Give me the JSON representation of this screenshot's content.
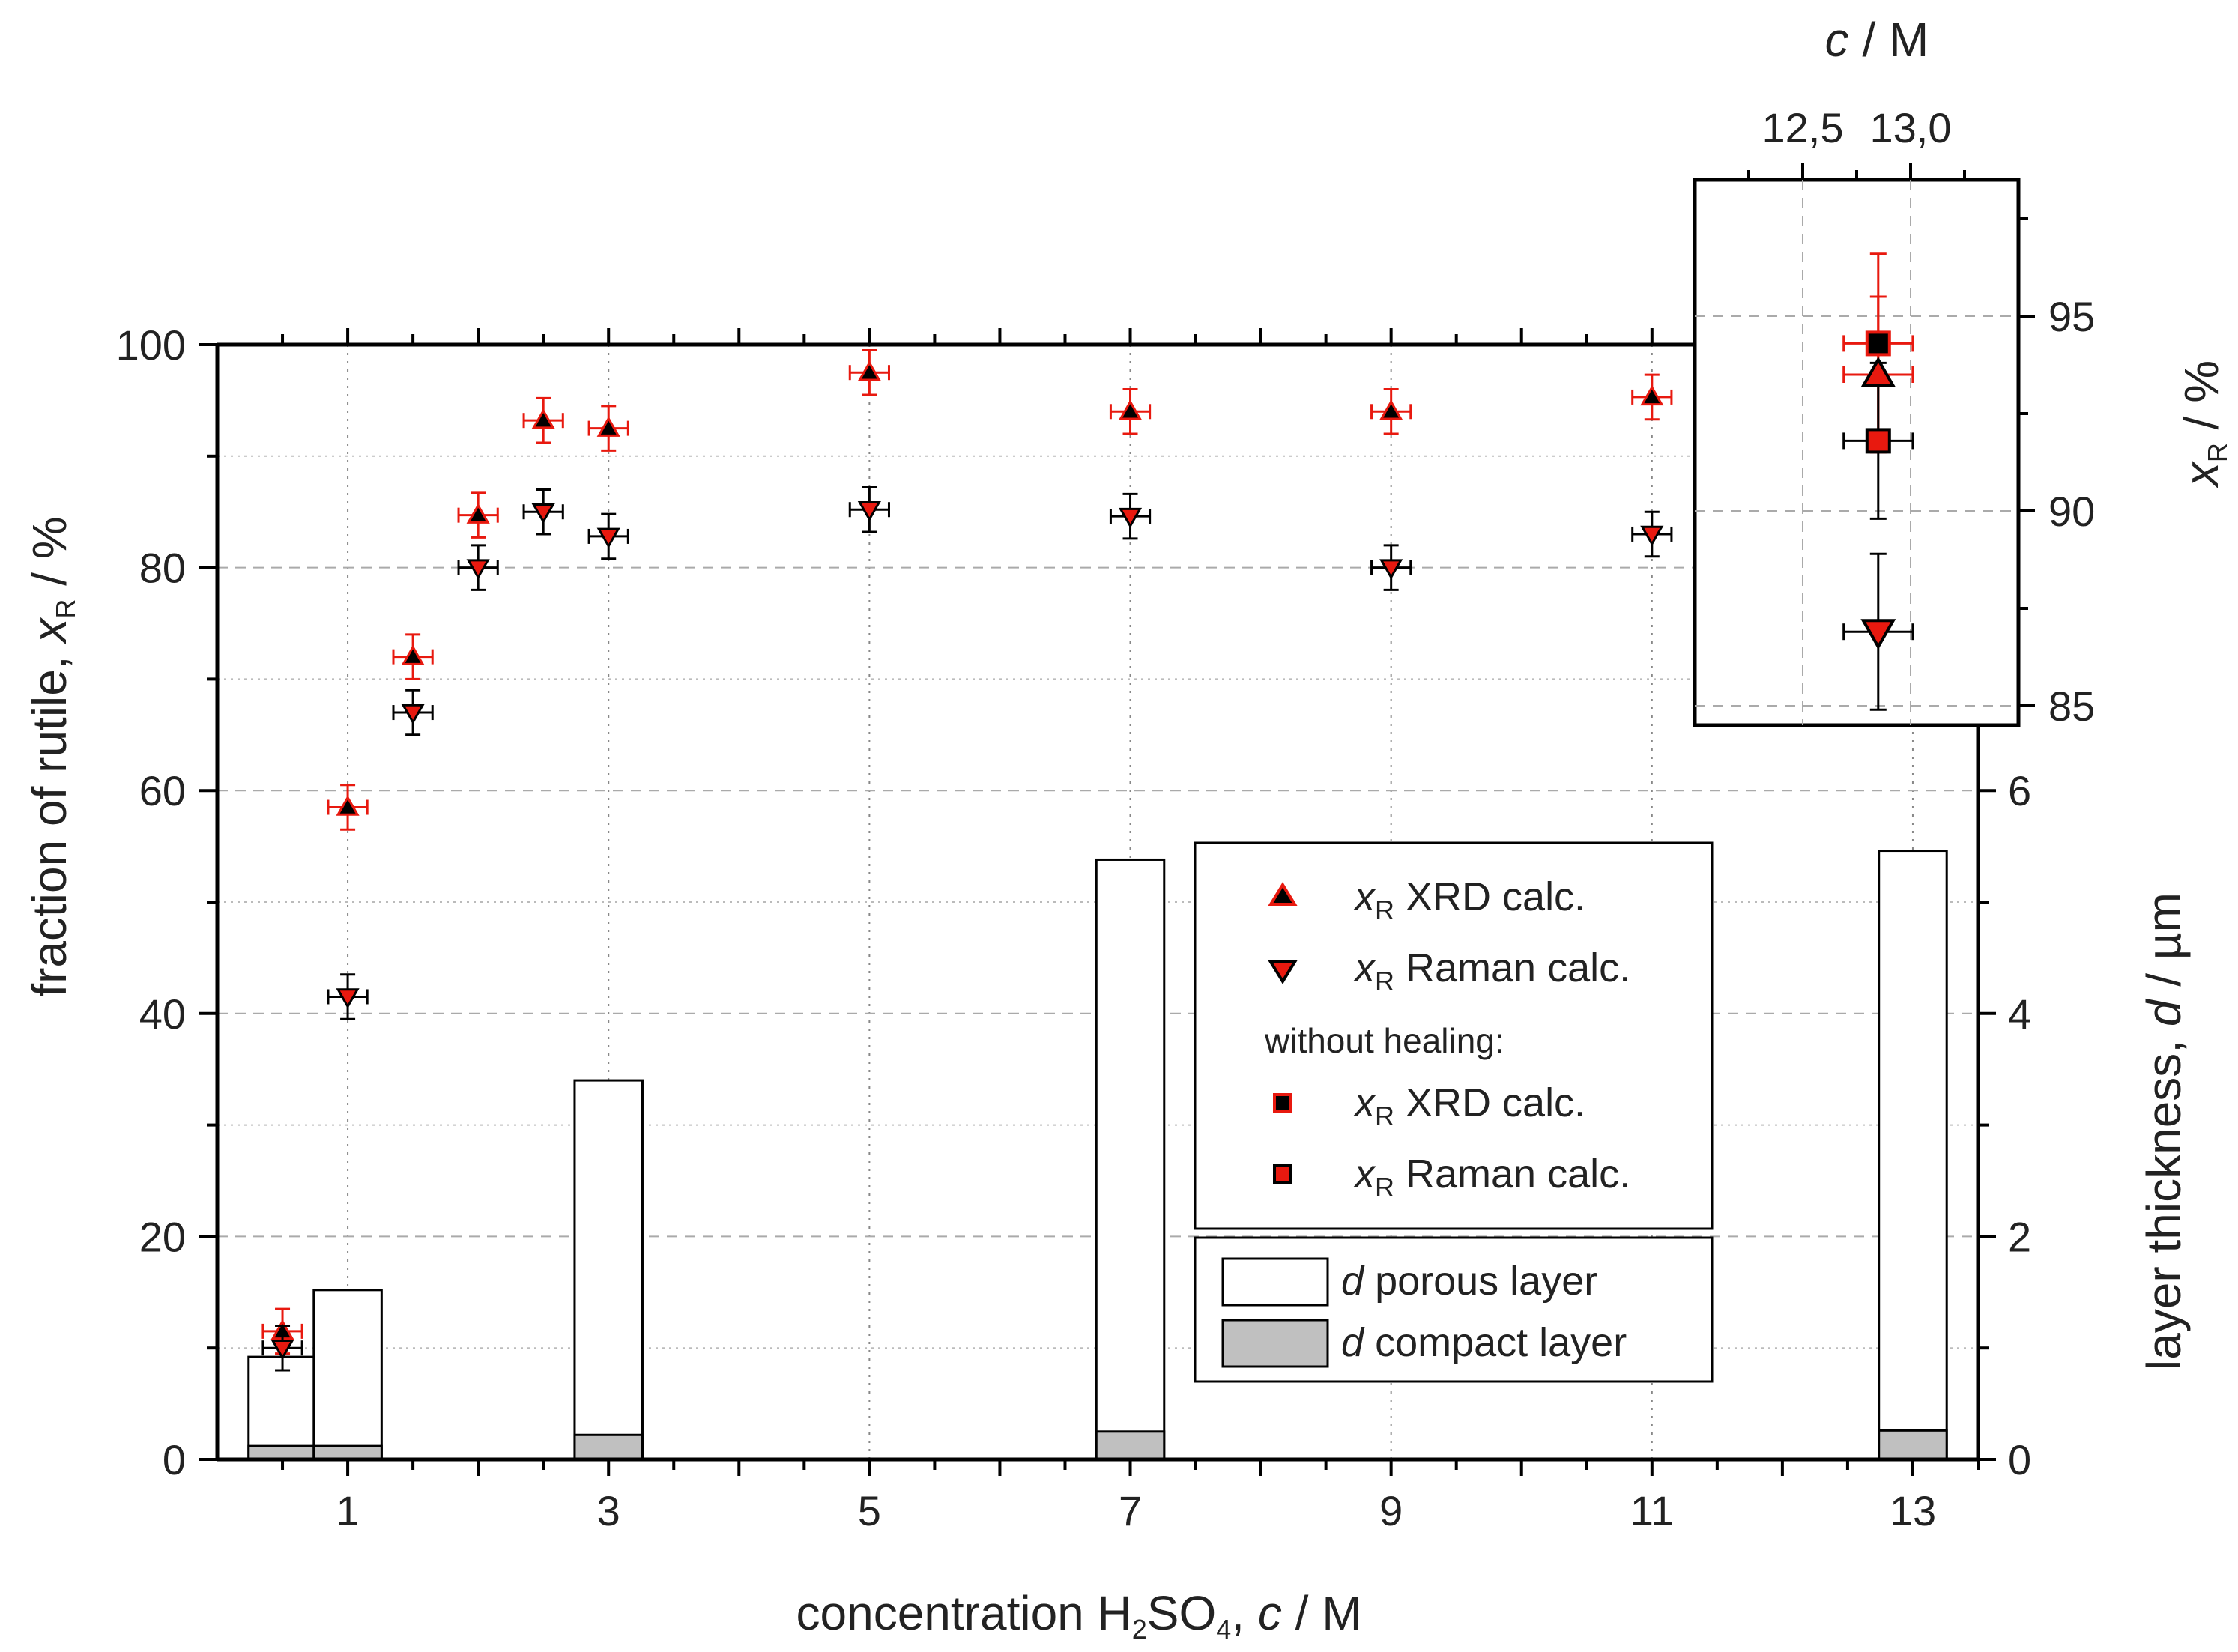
{
  "chart_data": {
    "type": "scatter",
    "title": "",
    "xlabel": {
      "prefix": "concentration H",
      "sub": "2",
      "mid": "SO",
      "sub2": "4",
      "sep": ", ",
      "var": "c",
      "unit": " / M"
    },
    "ylabel": {
      "prefix": "fraction of rutile, ",
      "var": "x",
      "sub": "R",
      "unit": " / %"
    },
    "y2label": {
      "prefix": "layer thickness, ",
      "var": "d",
      "unit": " / µm"
    },
    "xlim": [
      0,
      13.5
    ],
    "ylim": [
      0,
      100
    ],
    "y2lim": [
      0,
      10
    ],
    "x_ticks": [
      1,
      3,
      5,
      7,
      9,
      11,
      13
    ],
    "y_ticks": [
      0,
      20,
      40,
      60,
      80,
      100
    ],
    "y2_ticks": [
      0,
      2,
      4,
      6
    ],
    "series": [
      {
        "name": "XRD calc.",
        "marker": "triangle-up",
        "error_color": "#e8190f",
        "marker_fill": "#000000",
        "marker_edge": "#e8190f",
        "x": [
          0.5,
          1,
          1.5,
          2,
          2.5,
          3,
          5,
          7,
          9,
          11
        ],
        "y": [
          11.5,
          58.5,
          72,
          84.7,
          93.2,
          92.5,
          97.5,
          94,
          94,
          95.3
        ],
        "yerr": 2,
        "xerr": 0.15
      },
      {
        "name": "Raman calc.",
        "marker": "triangle-down",
        "error_color": "#000000",
        "marker_fill": "#e8190f",
        "marker_edge": "#000000",
        "x": [
          0.5,
          1,
          1.5,
          2,
          2.5,
          3,
          5,
          7,
          9,
          11
        ],
        "y": [
          10,
          41.5,
          67,
          80,
          85,
          82.8,
          85.2,
          84.6,
          80,
          83
        ],
        "yerr": 2,
        "xerr": 0.15
      }
    ],
    "bars": {
      "name_porous": "porous layer",
      "name_compact": "compact layer",
      "x": [
        0.5,
        1,
        3,
        7,
        13
      ],
      "total_um": [
        0.92,
        1.52,
        3.4,
        5.38,
        5.46
      ],
      "compact_um": [
        0.12,
        0.12,
        0.22,
        0.25,
        0.26
      ],
      "width": 0.52,
      "porous_color": "#ffffff",
      "compact_color": "#c0c0c0"
    },
    "legend": {
      "var": "x",
      "sub": "R",
      "heading": "without healing:",
      "entries": [
        "XRD calc.",
        "Raman calc.",
        "XRD calc.",
        "Raman calc."
      ],
      "bar_var": "d"
    },
    "inset": {
      "xlabel": {
        "var": "c",
        "unit": " / M"
      },
      "ylabel": {
        "var": "x",
        "sub": "R",
        "unit": " / %"
      },
      "x_ticks": [
        "12,5",
        "13,0"
      ],
      "x_tick_values": [
        12.5,
        13.0
      ],
      "y_ticks": [
        85,
        90,
        95
      ],
      "xlim": [
        12.0,
        13.5
      ],
      "ylim": [
        84.5,
        98.5
      ],
      "points": [
        {
          "name": "XRD calc. without healing",
          "marker": "square",
          "fill": "#000000",
          "edge": "#e8190f",
          "x": 12.85,
          "y": 94.3,
          "xerr": 0.16,
          "yerr": 2.3,
          "err_color": "#e8190f"
        },
        {
          "name": "XRD calc.",
          "marker": "triangle-up",
          "fill": "#e8190f",
          "edge": "#000000",
          "x": 12.85,
          "y": 93.5,
          "xerr": 0.16,
          "yerr": 2.0,
          "err_color": "#e8190f"
        },
        {
          "name": "Raman calc. without healing",
          "marker": "square",
          "fill": "#e8190f",
          "edge": "#000000",
          "x": 12.85,
          "y": 91.8,
          "xerr": 0.16,
          "yerr": 2.0,
          "err_color": "#000000"
        },
        {
          "name": "Raman calc.",
          "marker": "triangle-down",
          "fill": "#e8190f",
          "edge": "#000000",
          "x": 12.85,
          "y": 86.9,
          "xerr": 0.16,
          "yerr": 2.0,
          "err_color": "#000000"
        }
      ]
    }
  }
}
